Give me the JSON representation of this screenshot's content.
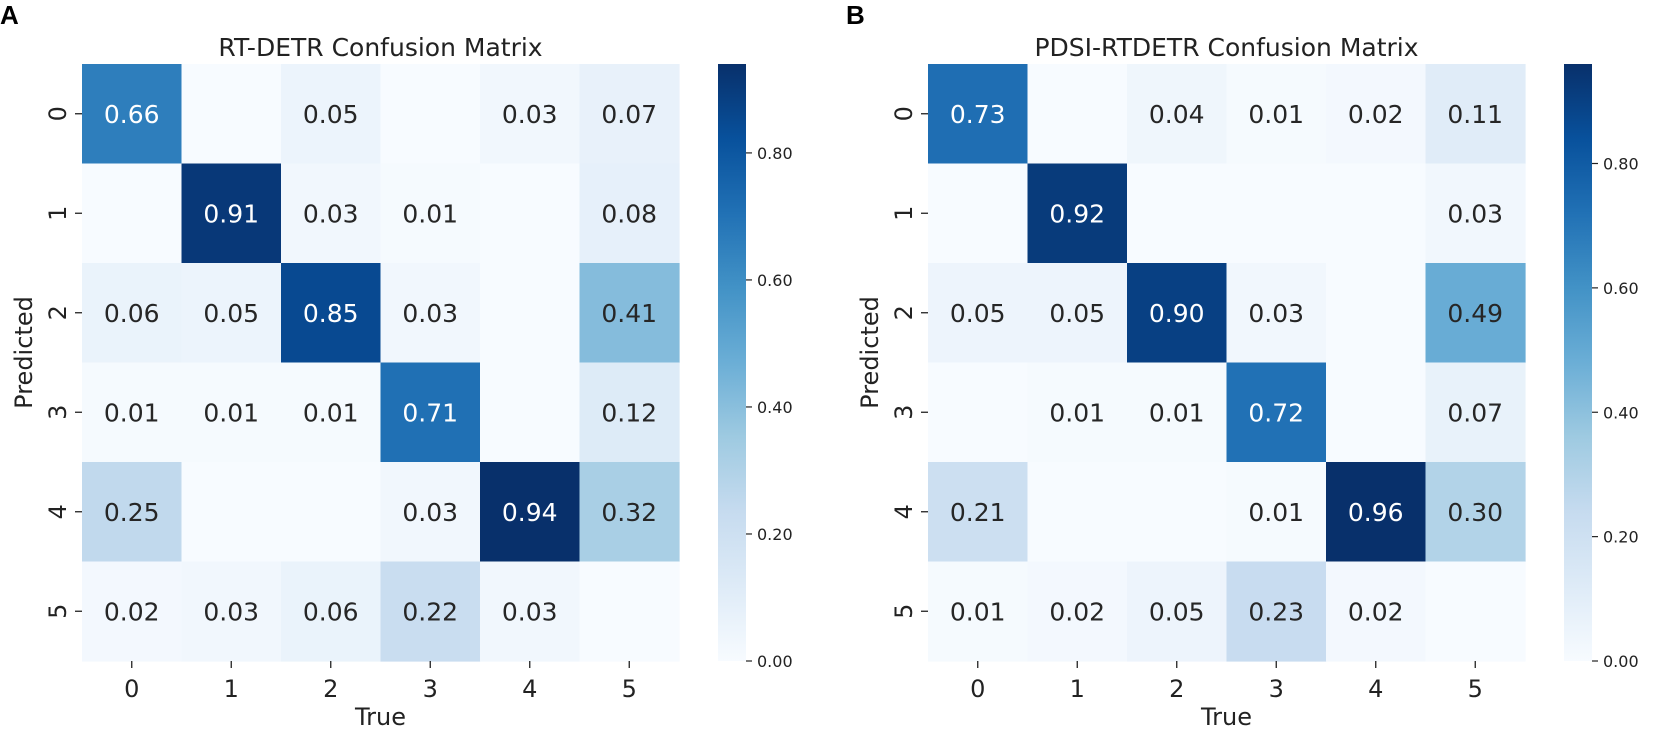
{
  "chart_data": [
    {
      "type": "heatmap",
      "panel_label": "A",
      "title": "RT-DETR Confusion Matrix",
      "xlabel": "True",
      "ylabel": "Predicted",
      "x_tick_labels": [
        "0",
        "1",
        "2",
        "3",
        "4",
        "5"
      ],
      "y_tick_labels": [
        "0",
        "1",
        "2",
        "3",
        "4",
        "5"
      ],
      "colormap": "Blues",
      "colorbar_range": [
        0,
        0.94
      ],
      "colorbar_ticks": [
        "0.00",
        "0.20",
        "0.40",
        "0.60",
        "0.80"
      ],
      "colorbar_tick_values": [
        0,
        0.2,
        0.4,
        0.6,
        0.8
      ],
      "values": [
        [
          0.66,
          0.0,
          0.05,
          0.0,
          0.03,
          0.07
        ],
        [
          0.0,
          0.91,
          0.03,
          0.01,
          0.0,
          0.08
        ],
        [
          0.06,
          0.05,
          0.85,
          0.03,
          0.0,
          0.41
        ],
        [
          0.01,
          0.01,
          0.01,
          0.71,
          0.0,
          0.12
        ],
        [
          0.25,
          0.0,
          0.0,
          0.03,
          0.94,
          0.32
        ],
        [
          0.02,
          0.03,
          0.06,
          0.22,
          0.03,
          0.0
        ]
      ],
      "cell_labels": [
        [
          "0.66",
          "",
          "0.05",
          "",
          "0.03",
          "0.07"
        ],
        [
          "",
          "0.91",
          "0.03",
          "0.01",
          "",
          "0.08"
        ],
        [
          "0.06",
          "0.05",
          "0.85",
          "0.03",
          "",
          "0.41"
        ],
        [
          "0.01",
          "0.01",
          "0.01",
          "0.71",
          "",
          "0.12"
        ],
        [
          "0.25",
          "",
          "",
          "0.03",
          "0.94",
          "0.32"
        ],
        [
          "0.02",
          "0.03",
          "0.06",
          "0.22",
          "0.03",
          ""
        ]
      ]
    },
    {
      "type": "heatmap",
      "panel_label": "B",
      "title": "PDSI-RTDETR Confusion Matrix",
      "xlabel": "True",
      "ylabel": "Predicted",
      "x_tick_labels": [
        "0",
        "1",
        "2",
        "3",
        "4",
        "5"
      ],
      "y_tick_labels": [
        "0",
        "1",
        "2",
        "3",
        "4",
        "5"
      ],
      "colormap": "Blues",
      "colorbar_range": [
        0,
        0.96
      ],
      "colorbar_ticks": [
        "0.00",
        "0.20",
        "0.40",
        "0.60",
        "0.80"
      ],
      "colorbar_tick_values": [
        0,
        0.2,
        0.4,
        0.6,
        0.8
      ],
      "values": [
        [
          0.73,
          0.0,
          0.04,
          0.01,
          0.02,
          0.11
        ],
        [
          0.0,
          0.92,
          0.0,
          0.0,
          0.0,
          0.03
        ],
        [
          0.05,
          0.05,
          0.9,
          0.03,
          0.0,
          0.49
        ],
        [
          0.0,
          0.01,
          0.01,
          0.72,
          0.0,
          0.07
        ],
        [
          0.21,
          0.0,
          0.0,
          0.01,
          0.96,
          0.3
        ],
        [
          0.01,
          0.02,
          0.05,
          0.23,
          0.02,
          0.0
        ]
      ],
      "cell_labels": [
        [
          "0.73",
          "",
          "0.04",
          "0.01",
          "0.02",
          "0.11"
        ],
        [
          "",
          "0.92",
          "",
          "",
          "",
          "0.03"
        ],
        [
          "0.05",
          "0.05",
          "0.90",
          "0.03",
          "",
          "0.49"
        ],
        [
          "",
          "0.01",
          "0.01",
          "0.72",
          "",
          "0.07"
        ],
        [
          "0.21",
          "",
          "",
          "0.01",
          "0.96",
          "0.30"
        ],
        [
          "0.01",
          "0.02",
          "0.05",
          "0.23",
          "0.02",
          ""
        ]
      ]
    }
  ]
}
